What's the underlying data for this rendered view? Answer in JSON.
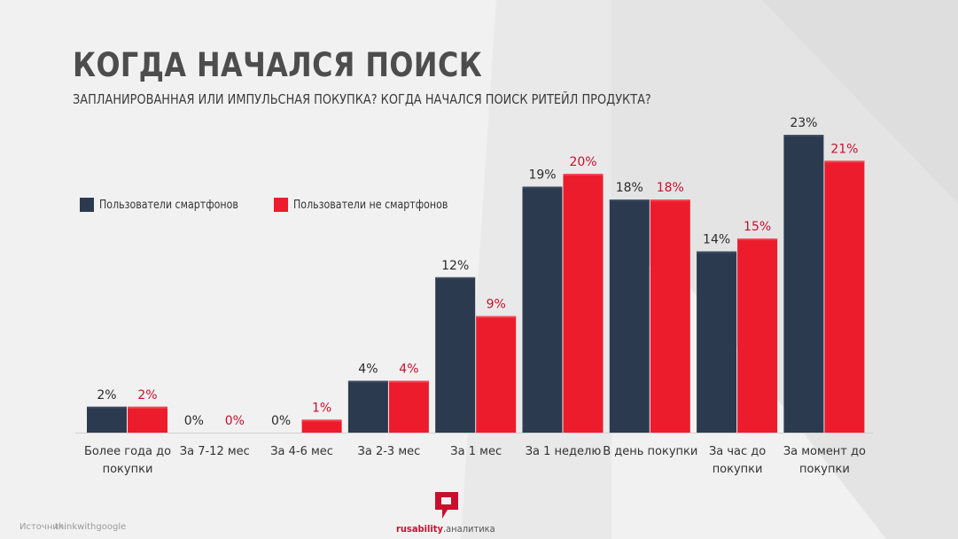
{
  "header": {
    "title": "КОГДА НАЧАЛСЯ ПОИСК",
    "subtitle": "ЗАПЛАНИРОВАННАЯ ИЛИ ИМПУЛЬСНАЯ ПОКУПКА? КОГДА НАЧАЛСЯ ПОИСК РИТЕЙЛ ПРОДУКТА?"
  },
  "legend": {
    "series_a": "Пользователи смартфонов",
    "series_b": "Пользователи не смартфонов"
  },
  "colors": {
    "series_a": "#2c3a4f",
    "series_b": "#ec1c2c",
    "label_a": "#2b2b2b",
    "label_b": "#c8102e"
  },
  "footer": {
    "source_label": "Источник:",
    "source_value": "thinkwithgoogle",
    "brand_main": "rusability",
    "brand_sub": ".аналитика"
  },
  "chart_data": {
    "type": "bar",
    "categories": [
      [
        "Более года до",
        "покупки"
      ],
      [
        "За 7-12 мес"
      ],
      [
        "За 4-6 мес"
      ],
      [
        "За 2-3 мес"
      ],
      [
        "За 1 мес"
      ],
      [
        "За 1 неделю"
      ],
      [
        "В день покупки"
      ],
      [
        "За час до",
        "покупки"
      ],
      [
        "За момент до",
        "покупки"
      ]
    ],
    "series": [
      {
        "name": "Пользователи смартфонов",
        "values": [
          2,
          0,
          0,
          4,
          12,
          19,
          18,
          14,
          23
        ]
      },
      {
        "name": "Пользователи не смартфонов",
        "values": [
          2,
          0,
          1,
          4,
          9,
          20,
          18,
          15,
          21
        ]
      }
    ],
    "ylim": [
      0,
      23
    ],
    "legend_position": "top-left",
    "grid": false,
    "xlabel": "",
    "ylabel": ""
  }
}
